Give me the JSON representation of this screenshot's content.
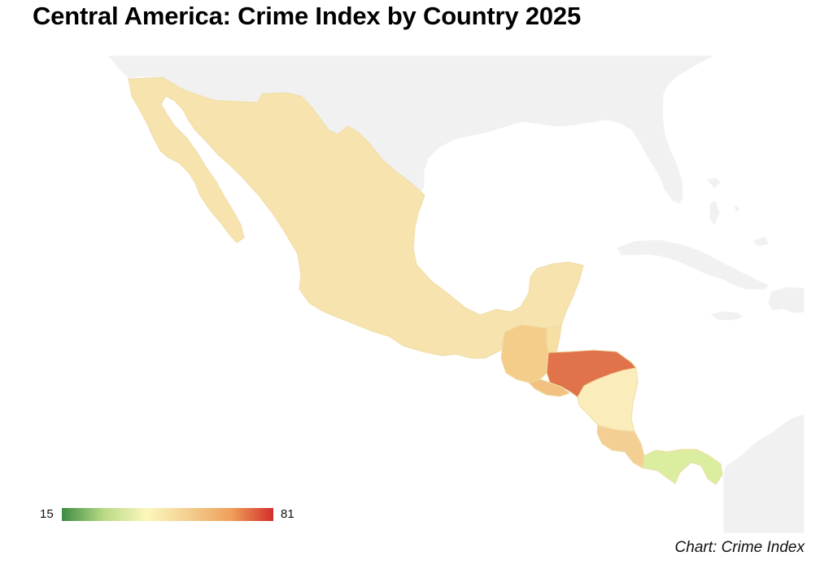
{
  "title": "Central America: Crime Index by Country 2025",
  "source": "Chart: Crime Index",
  "legend": {
    "min": "15",
    "max": "81",
    "colors": [
      "#3e8d43",
      "#b9da86",
      "#fcf7bd",
      "#f3cf90",
      "#efa05b",
      "#d32e2a"
    ]
  },
  "colors": {
    "background_land": "#f1f1f1",
    "background_border": "#ffffff",
    "country_border": "#efdca6"
  },
  "countries": [
    {
      "name": "Mexico",
      "fill": "#f7e3ae"
    },
    {
      "name": "Guatemala",
      "fill": "#f5cd8b"
    },
    {
      "name": "Belize",
      "fill": "#f7dea2"
    },
    {
      "name": "El Salvador",
      "fill": "#f2c080"
    },
    {
      "name": "Honduras",
      "fill": "#e07349"
    },
    {
      "name": "Nicaragua",
      "fill": "#fbedbb"
    },
    {
      "name": "Costa Rica",
      "fill": "#f3cf94"
    },
    {
      "name": "Panama",
      "fill": "#dbed9f"
    }
  ]
}
